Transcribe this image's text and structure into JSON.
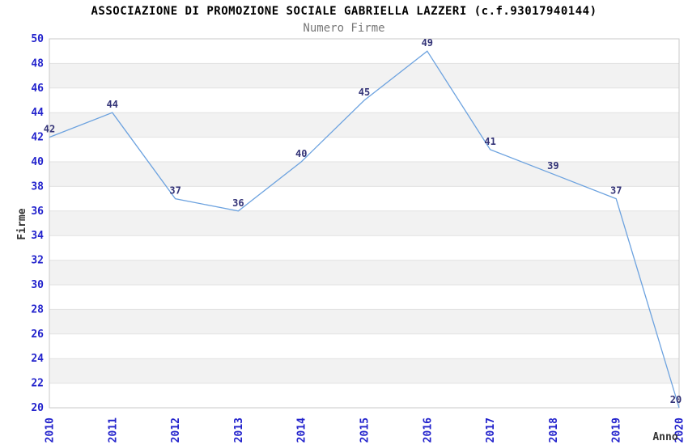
{
  "chart_data": {
    "type": "line",
    "title": "ASSOCIAZIONE DI PROMOZIONE SOCIALE GABRIELLA LAZZERI (c.f.93017940144)",
    "subtitle": "Numero Firme",
    "xlabel": "Anno",
    "ylabel": "Firme",
    "categories": [
      "2010",
      "2011",
      "2012",
      "2013",
      "2014",
      "2015",
      "2016",
      "2017",
      "2018",
      "2019",
      "2020"
    ],
    "values": [
      42,
      44,
      37,
      36,
      40,
      45,
      49,
      41,
      39,
      37,
      20
    ],
    "yticks": [
      20,
      22,
      24,
      26,
      28,
      30,
      32,
      34,
      36,
      38,
      40,
      42,
      44,
      46,
      48,
      50
    ],
    "ylim": [
      20,
      50
    ],
    "ytick_step": 2,
    "grid": true,
    "legend": "none",
    "band_pattern": "alternating-2-unit",
    "point_labels_shown": true,
    "colors": {
      "line": "#6CA2DF",
      "point_label": "#333377",
      "tick_label": "#2222CC",
      "axis_title": "#333333",
      "grid_line": "#e2e2e2",
      "band_fill": "#f2f2f2",
      "plot_border": "#c9c9c9",
      "title": "#000000",
      "subtitle": "#787878",
      "background": "#ffffff"
    }
  }
}
